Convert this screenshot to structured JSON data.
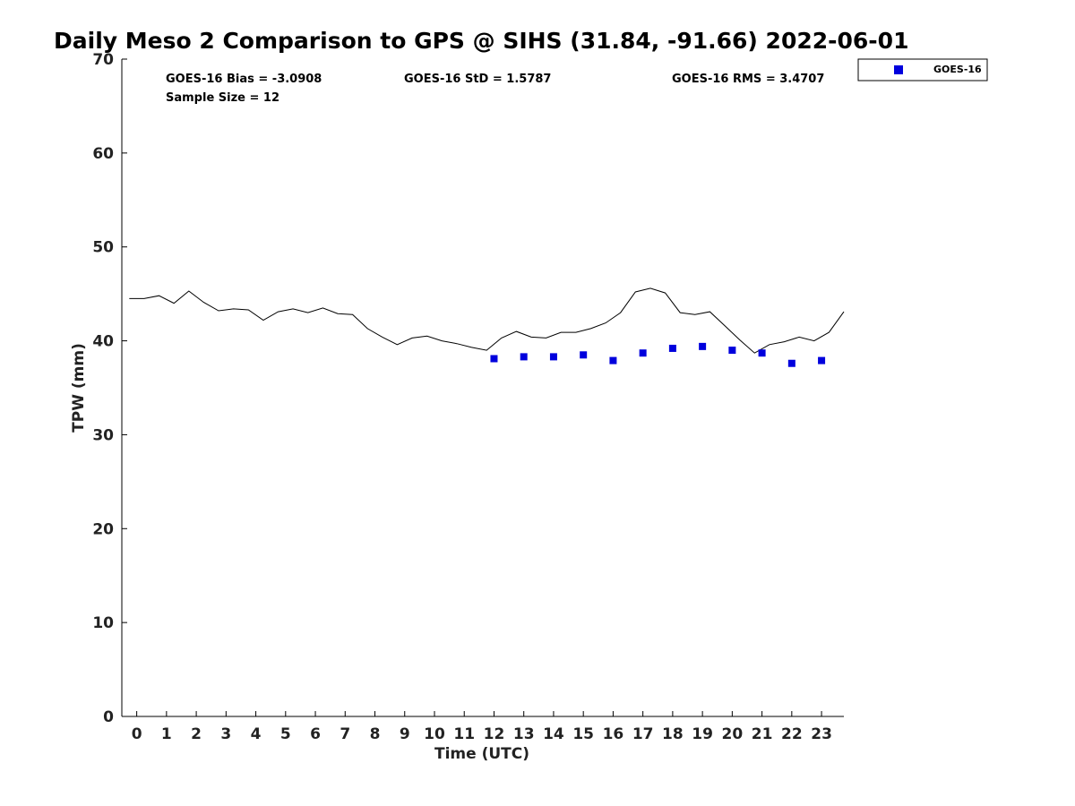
{
  "chart_data": {
    "type": "scatter",
    "title": "Daily Meso 2 Comparison to GPS @ SIHS (31.84, -91.66) 2022-06-01",
    "xlabel": "Time (UTC)",
    "ylabel": "TPW (mm)",
    "xlim": [
      -0.5,
      23.75
    ],
    "ylim": [
      0,
      70
    ],
    "x_ticks": [
      0,
      1,
      2,
      3,
      4,
      5,
      6,
      7,
      8,
      9,
      10,
      11,
      12,
      13,
      14,
      15,
      16,
      17,
      18,
      19,
      20,
      21,
      22,
      23
    ],
    "y_ticks": [
      0,
      10,
      20,
      30,
      40,
      50,
      60,
      70
    ],
    "grid": false,
    "legend_position": "top-right",
    "legend": [
      "GOES-16"
    ],
    "stats": {
      "bias": "GOES-16 Bias = -3.0908",
      "std": "GOES-16 StD = 1.5787",
      "rms": "GOES-16 RMS = 3.4707",
      "sample_size": "Sample Size = 12"
    },
    "series": [
      {
        "style": "line",
        "color": "#000000",
        "x": [
          -0.25,
          0.25,
          0.75,
          1.25,
          1.75,
          2.25,
          2.75,
          3.25,
          3.75,
          4.25,
          4.75,
          5.25,
          5.75,
          6.25,
          6.75,
          7.25,
          7.75,
          8.25,
          8.75,
          9.25,
          9.75,
          10.25,
          10.75,
          11.25,
          11.75,
          12.25,
          12.75,
          13.25,
          13.75,
          14.25,
          14.75,
          15.25,
          15.75,
          16.25,
          16.75,
          17.25,
          17.75,
          18.25,
          18.75,
          19.25,
          19.75,
          20.25,
          20.75,
          21.25,
          21.75,
          22.25,
          22.75,
          23.25,
          23.75
        ],
        "y": [
          44.5,
          44.5,
          44.8,
          44.0,
          45.3,
          44.1,
          43.2,
          43.4,
          43.3,
          42.2,
          43.1,
          43.4,
          43.0,
          43.5,
          42.9,
          42.8,
          41.3,
          40.4,
          39.6,
          40.3,
          40.5,
          40.0,
          39.7,
          39.3,
          39.0,
          40.3,
          41.0,
          40.4,
          40.3,
          40.9,
          40.9,
          41.3,
          41.9,
          43.0,
          45.2,
          45.6,
          45.1,
          43.0,
          42.8,
          43.1,
          41.6,
          40.1,
          38.7,
          39.6,
          39.9,
          40.4,
          40.0,
          40.9,
          43.1
        ]
      },
      {
        "name": "GOES-16",
        "style": "square-markers",
        "color": "#0000dd",
        "x": [
          12,
          13,
          14,
          15,
          16,
          17,
          18,
          19,
          20,
          21,
          22,
          23
        ],
        "y": [
          38.1,
          38.3,
          38.3,
          38.5,
          37.9,
          38.7,
          39.2,
          39.4,
          39.0,
          38.7,
          37.6,
          37.9
        ]
      }
    ]
  }
}
